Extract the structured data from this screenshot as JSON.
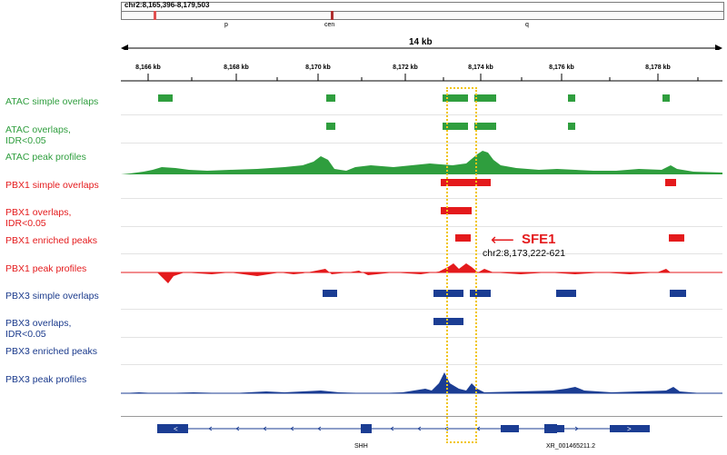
{
  "locus": "chr2:8,165,396-8,179,503",
  "ideogram": {
    "p": "p",
    "cen": "cen",
    "q": "q"
  },
  "ruler": {
    "span": "14 kb",
    "ticks": [
      "8,166 kb",
      "8,168 kb",
      "8,170 kb",
      "8,172 kb",
      "8,174 kb",
      "8,176 kb",
      "8,178 kb"
    ]
  },
  "tracks": [
    {
      "label": "ATAC simple overlaps"
    },
    {
      "label": "ATAC overlaps,\nIDR<0.05"
    },
    {
      "label": "ATAC peak profiles"
    },
    {
      "label": "PBX1 simple overlaps"
    },
    {
      "label": "PBX1 overlaps,\nIDR<0.05"
    },
    {
      "label": "PBX1 enriched peaks"
    },
    {
      "label": "PBX1 peak profiles"
    },
    {
      "label": "PBX3 simple overlaps"
    },
    {
      "label": "PBX3 overlaps,\nIDR<0.05"
    },
    {
      "label": "PBX3 enriched peaks"
    },
    {
      "label": "PBX3 peak profiles"
    }
  ],
  "annotation": {
    "name": "SFE1",
    "coords": "chr2:8,173,222-621"
  },
  "genes": [
    "SHH",
    "XR_001465211.2"
  ],
  "colors": {
    "atac": "#2f9e3e",
    "pbx1": "#e41a1c",
    "pbx3": "#1b3d93",
    "highlight": "#f2c515"
  }
}
